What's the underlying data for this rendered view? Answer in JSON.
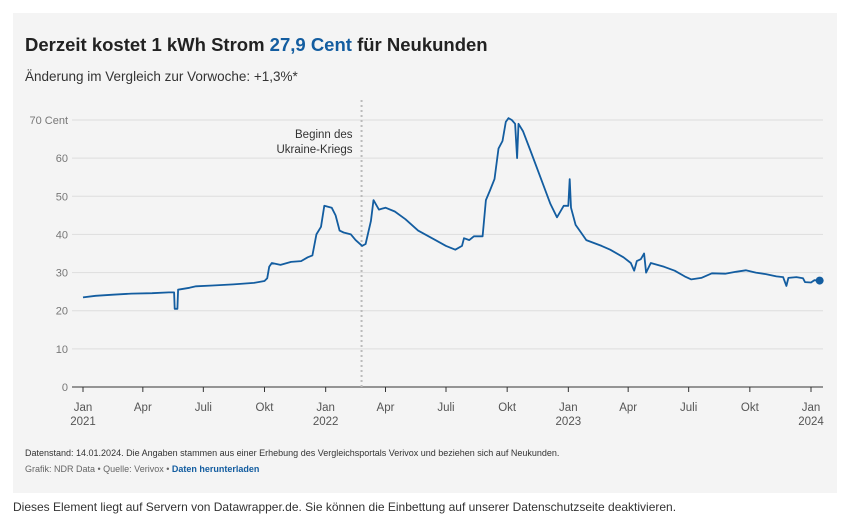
{
  "header": {
    "title_prefix": "Derzeit kostet 1 kWh Strom ",
    "title_highlight": "27,9 Cent",
    "title_suffix": " für Neukunden",
    "subtitle": "Änderung im Vergleich zur Vorwoche: +1,3%*"
  },
  "notes": {
    "datenstand": "Datenstand: 14.01.2024. Die Angaben stammen aus einer Erhebung des Vergleichsportals Verivox und beziehen sich auf Neukunden.",
    "byline": "Grafik: NDR Data • Quelle: Verivox • ",
    "download_label": "Daten herunterladen"
  },
  "footer_text": "Dieses Element liegt auf Servern von Datawrapper.de. Sie können die Einbettung auf unserer Datenschutzseite deaktivieren.",
  "colors": {
    "line": "#135da0",
    "highlight": "#135da0",
    "background": "#f4f4f4"
  },
  "chart_data": {
    "type": "line",
    "title": "",
    "xlabel": "",
    "ylabel": "",
    "ylim": [
      0,
      70
    ],
    "y_ticks": [
      0,
      10,
      20,
      30,
      40,
      50,
      60,
      70
    ],
    "y_tick_labels": [
      "0",
      "10",
      "20",
      "30",
      "40",
      "50",
      "60",
      "70 Cent"
    ],
    "x_ticks": [
      {
        "date": "2021-01-01",
        "label": "Jan",
        "sub": "2021"
      },
      {
        "date": "2021-04-01",
        "label": "Apr",
        "sub": ""
      },
      {
        "date": "2021-07-01",
        "label": "Juli",
        "sub": ""
      },
      {
        "date": "2021-10-01",
        "label": "Okt",
        "sub": ""
      },
      {
        "date": "2022-01-01",
        "label": "Jan",
        "sub": "2022"
      },
      {
        "date": "2022-04-01",
        "label": "Apr",
        "sub": ""
      },
      {
        "date": "2022-07-01",
        "label": "Juli",
        "sub": ""
      },
      {
        "date": "2022-10-01",
        "label": "Okt",
        "sub": ""
      },
      {
        "date": "2023-01-01",
        "label": "Jan",
        "sub": "2023"
      },
      {
        "date": "2023-04-01",
        "label": "Apr",
        "sub": ""
      },
      {
        "date": "2023-07-01",
        "label": "Juli",
        "sub": ""
      },
      {
        "date": "2023-10-01",
        "label": "Okt",
        "sub": ""
      },
      {
        "date": "2024-01-01",
        "label": "Jan",
        "sub": "2024"
      }
    ],
    "annotation": {
      "date": "2022-02-24",
      "lines": [
        "Beginn des",
        "Ukraine-Kriegs"
      ]
    },
    "series": [
      {
        "name": "",
        "points": [
          [
            "2021-01-01",
            23.5
          ],
          [
            "2021-01-20",
            23.9
          ],
          [
            "2021-02-15",
            24.2
          ],
          [
            "2021-03-15",
            24.5
          ],
          [
            "2021-04-15",
            24.6
          ],
          [
            "2021-05-10",
            24.8
          ],
          [
            "2021-05-18",
            24.8
          ],
          [
            "2021-05-19",
            20.5
          ],
          [
            "2021-05-23",
            20.5
          ],
          [
            "2021-05-24",
            25.5
          ],
          [
            "2021-06-10",
            26.0
          ],
          [
            "2021-06-20",
            26.4
          ],
          [
            "2021-07-15",
            26.6
          ],
          [
            "2021-08-15",
            26.9
          ],
          [
            "2021-09-15",
            27.3
          ],
          [
            "2021-10-01",
            27.8
          ],
          [
            "2021-10-05",
            28.5
          ],
          [
            "2021-10-08",
            31.5
          ],
          [
            "2021-10-12",
            32.5
          ],
          [
            "2021-10-25",
            32.0
          ],
          [
            "2021-11-10",
            32.8
          ],
          [
            "2021-11-25",
            33.0
          ],
          [
            "2021-12-05",
            34.0
          ],
          [
            "2021-12-12",
            34.5
          ],
          [
            "2021-12-18",
            40.0
          ],
          [
            "2021-12-25",
            42.0
          ],
          [
            "2021-12-30",
            47.5
          ],
          [
            "2022-01-10",
            47.0
          ],
          [
            "2022-01-16",
            45.0
          ],
          [
            "2022-01-22",
            41.0
          ],
          [
            "2022-01-28",
            40.5
          ],
          [
            "2022-02-08",
            40.0
          ],
          [
            "2022-02-15",
            38.5
          ],
          [
            "2022-02-25",
            37.0
          ],
          [
            "2022-03-02",
            37.5
          ],
          [
            "2022-03-10",
            43.5
          ],
          [
            "2022-03-14",
            49.0
          ],
          [
            "2022-03-22",
            46.5
          ],
          [
            "2022-04-01",
            47.0
          ],
          [
            "2022-04-15",
            46.0
          ],
          [
            "2022-05-01",
            44.0
          ],
          [
            "2022-05-20",
            41.0
          ],
          [
            "2022-06-15",
            38.5
          ],
          [
            "2022-07-01",
            37.0
          ],
          [
            "2022-07-15",
            36.0
          ],
          [
            "2022-07-25",
            37.0
          ],
          [
            "2022-07-28",
            39.0
          ],
          [
            "2022-08-05",
            38.5
          ],
          [
            "2022-08-12",
            39.5
          ],
          [
            "2022-08-25",
            39.5
          ],
          [
            "2022-08-30",
            49.0
          ],
          [
            "2022-09-05",
            51.5
          ],
          [
            "2022-09-12",
            54.5
          ],
          [
            "2022-09-18",
            62.5
          ],
          [
            "2022-09-24",
            64.5
          ],
          [
            "2022-09-29",
            69.5
          ],
          [
            "2022-10-03",
            70.5
          ],
          [
            "2022-10-08",
            70.0
          ],
          [
            "2022-10-13",
            69.0
          ],
          [
            "2022-10-16",
            60.0
          ],
          [
            "2022-10-18",
            69.0
          ],
          [
            "2022-10-25",
            67.0
          ],
          [
            "2022-11-05",
            62.0
          ],
          [
            "2022-11-20",
            55.0
          ],
          [
            "2022-12-05",
            48.0
          ],
          [
            "2022-12-15",
            44.5
          ],
          [
            "2022-12-25",
            47.5
          ],
          [
            "2023-01-01",
            47.5
          ],
          [
            "2023-01-03",
            54.5
          ],
          [
            "2023-01-05",
            47.0
          ],
          [
            "2023-01-12",
            42.5
          ],
          [
            "2023-01-20",
            40.5
          ],
          [
            "2023-01-28",
            38.5
          ],
          [
            "2023-02-05",
            38.0
          ],
          [
            "2023-02-20",
            37.0
          ],
          [
            "2023-03-05",
            36.0
          ],
          [
            "2023-03-25",
            34.0
          ],
          [
            "2023-04-05",
            32.5
          ],
          [
            "2023-04-10",
            30.5
          ],
          [
            "2023-04-14",
            33.0
          ],
          [
            "2023-04-20",
            33.5
          ],
          [
            "2023-04-25",
            35.0
          ],
          [
            "2023-04-28",
            30.0
          ],
          [
            "2023-05-05",
            32.5
          ],
          [
            "2023-05-25",
            31.5
          ],
          [
            "2023-06-10",
            30.5
          ],
          [
            "2023-06-25",
            29.0
          ],
          [
            "2023-07-05",
            28.2
          ],
          [
            "2023-07-20",
            28.6
          ],
          [
            "2023-08-05",
            29.8
          ],
          [
            "2023-08-25",
            29.7
          ],
          [
            "2023-09-10",
            30.2
          ],
          [
            "2023-09-25",
            30.6
          ],
          [
            "2023-10-10",
            30.0
          ],
          [
            "2023-10-25",
            29.6
          ],
          [
            "2023-11-10",
            29.0
          ],
          [
            "2023-11-20",
            28.8
          ],
          [
            "2023-11-25",
            26.5
          ],
          [
            "2023-11-28",
            28.6
          ],
          [
            "2023-12-10",
            28.8
          ],
          [
            "2023-12-20",
            28.5
          ],
          [
            "2023-12-23",
            27.5
          ],
          [
            "2024-01-01",
            27.4
          ],
          [
            "2024-01-06",
            28.0
          ],
          [
            "2024-01-14",
            27.9
          ]
        ]
      }
    ]
  }
}
